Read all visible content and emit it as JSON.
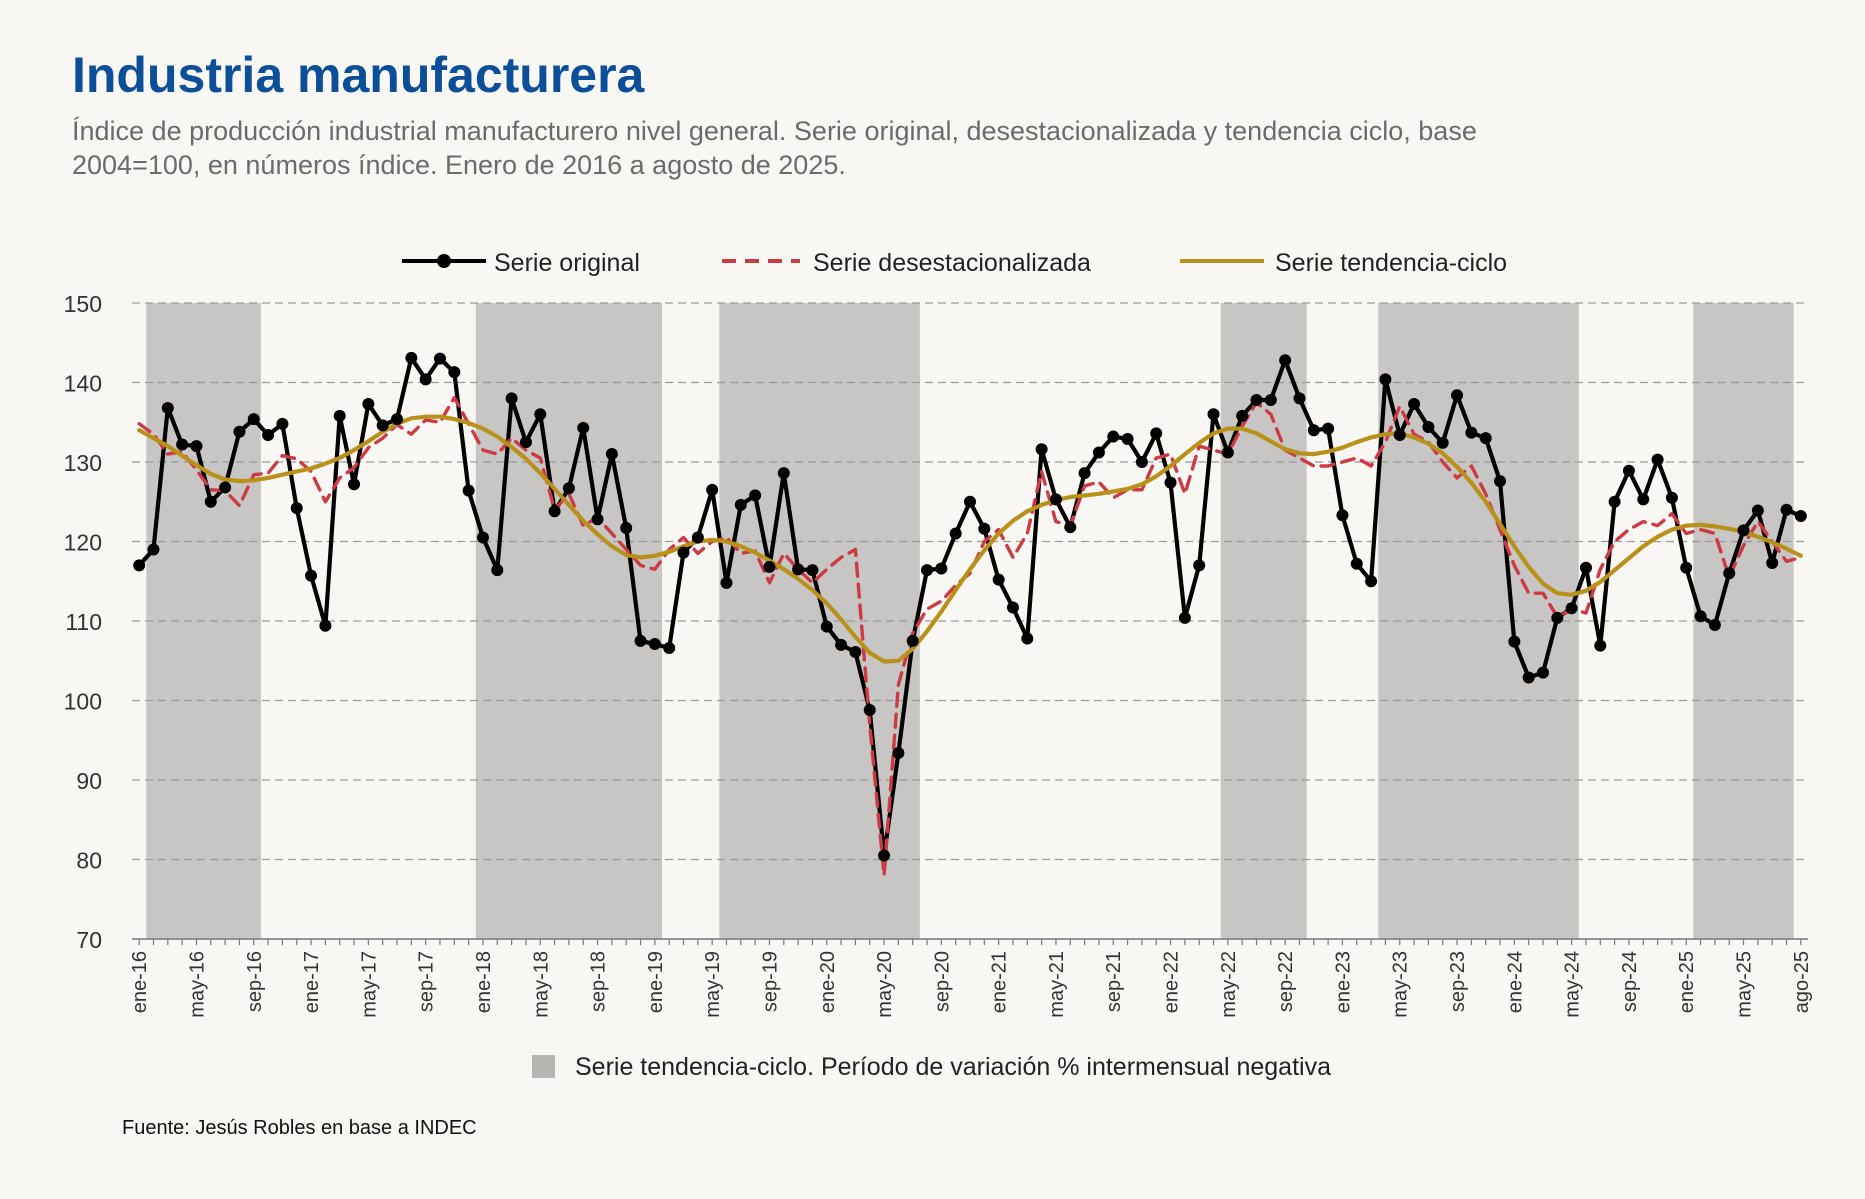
{
  "title": "Industria manufacturera",
  "subtitle": "Índice de producción industrial manufacturero nivel general. Serie original, desestacionalizada y tendencia ciclo, base 2004=100, en números índice. Enero de 2016 a agosto de 2025.",
  "source": "Fuente: Jesús Robles en base a INDEC",
  "colors": {
    "original": "#000000",
    "desestacionalizada": "#cc3a44",
    "tendencia": "#b8901a",
    "shade": "#c7c6c4",
    "title": "#0b4f98"
  },
  "chart_data": {
    "type": "line",
    "ylim": [
      70,
      150
    ],
    "yticks": [
      70,
      80,
      90,
      100,
      110,
      120,
      130,
      140,
      150
    ],
    "grid": true,
    "legend_placement": "top-center",
    "x_start": "2016-01",
    "x_end": "2025-08",
    "xtick_labels": [
      "ene-16",
      "may-16",
      "sep-16",
      "ene-17",
      "may-17",
      "sep-17",
      "ene-18",
      "may-18",
      "sep-18",
      "ene-19",
      "may-19",
      "sep-19",
      "ene-20",
      "may-20",
      "sep-20",
      "ene-21",
      "may-21",
      "sep-21",
      "ene-22",
      "may-22",
      "sep-22",
      "ene-23",
      "may-23",
      "sep-23",
      "ene-24",
      "may-24",
      "sep-24",
      "ene-25",
      "may-25",
      "ago-25"
    ],
    "series": [
      {
        "name": "Serie original",
        "style": "line-markers",
        "values": [
          117.0,
          119.0,
          136.8,
          132.2,
          132.0,
          125.0,
          126.8,
          133.8,
          135.4,
          133.4,
          134.8,
          124.2,
          115.7,
          109.4,
          135.8,
          127.2,
          137.3,
          134.6,
          135.4,
          143.1,
          140.4,
          143.0,
          141.3,
          126.4,
          120.5,
          116.4,
          138.0,
          132.5,
          136.0,
          123.8,
          126.7,
          134.3,
          122.8,
          131.0,
          121.7,
          107.5,
          107.1,
          106.6,
          118.6,
          120.5,
          126.5,
          114.8,
          124.6,
          125.8,
          116.8,
          128.6,
          116.5,
          116.4,
          109.3,
          107.0,
          106.1,
          98.8,
          80.5,
          93.4,
          107.5,
          116.4,
          116.6,
          121.0,
          125.0,
          121.6,
          115.2,
          111.7,
          107.8,
          131.6,
          125.3,
          121.8,
          128.6,
          131.2,
          133.2,
          132.9,
          130.0,
          133.6,
          127.4,
          110.4,
          117.0,
          136.0,
          131.2,
          135.8,
          137.8,
          137.8,
          142.8,
          138.0,
          134.0,
          134.2,
          123.3,
          117.2,
          115.0,
          140.4,
          133.4,
          137.3,
          134.4,
          132.4,
          138.4,
          133.7,
          133.0,
          127.6,
          107.4,
          102.9,
          103.5,
          110.4,
          111.6,
          116.7,
          106.9,
          125.0,
          128.9,
          125.3,
          130.3,
          125.5,
          116.7,
          110.6,
          109.5,
          116.0,
          121.4,
          123.9,
          117.3,
          124.0,
          123.2
        ]
      },
      {
        "name": "Serie desestacionalizada",
        "style": "dashed",
        "values": [
          134.8,
          133.5,
          131.0,
          131.3,
          129.0,
          126.5,
          126.4,
          124.5,
          128.4,
          128.6,
          130.8,
          130.4,
          128.8,
          125.0,
          128.0,
          129.3,
          131.8,
          133.0,
          134.7,
          133.5,
          135.3,
          135.0,
          138.1,
          134.8,
          131.5,
          131.0,
          133.0,
          131.5,
          130.5,
          124.0,
          126.0,
          122.0,
          123.0,
          121.0,
          119.0,
          117.0,
          116.5,
          119.0,
          120.5,
          118.5,
          120.0,
          120.5,
          118.5,
          118.8,
          114.8,
          118.5,
          116.5,
          114.8,
          116.5,
          118.0,
          119.0,
          97.0,
          78.0,
          102.0,
          108.5,
          111.5,
          112.5,
          114.5,
          116.0,
          120.0,
          121.5,
          118.0,
          121.0,
          128.8,
          122.5,
          122.0,
          127.0,
          127.5,
          125.5,
          126.5,
          126.5,
          130.5,
          131.0,
          126.0,
          132.0,
          131.5,
          131.0,
          134.5,
          137.5,
          136.0,
          131.5,
          130.5,
          129.5,
          129.5,
          130.0,
          130.5,
          129.5,
          132.5,
          137.0,
          133.5,
          132.5,
          130.0,
          128.0,
          129.5,
          126.0,
          121.5,
          117.0,
          113.5,
          113.5,
          110.5,
          111.5,
          111.0,
          116.5,
          120.0,
          121.5,
          122.5,
          122.0,
          123.5,
          121.0,
          121.5,
          121.0,
          115.5,
          119.5,
          122.5,
          120.0,
          117.5,
          118.0
        ]
      },
      {
        "name": "Serie tendencia-ciclo",
        "style": "solid",
        "values": [
          134.0,
          133.0,
          132.0,
          130.8,
          129.6,
          128.5,
          127.8,
          127.6,
          127.7,
          128.0,
          128.4,
          128.8,
          129.2,
          129.8,
          130.5,
          131.5,
          132.6,
          133.8,
          134.8,
          135.5,
          135.7,
          135.7,
          135.4,
          134.9,
          134.2,
          133.2,
          131.9,
          130.4,
          128.6,
          126.6,
          124.6,
          122.6,
          120.9,
          119.4,
          118.3,
          118.0,
          118.2,
          118.7,
          119.4,
          120.0,
          120.2,
          120.0,
          119.4,
          118.6,
          117.6,
          116.5,
          115.3,
          113.9,
          112.2,
          110.2,
          108.0,
          106.0,
          104.9,
          105.0,
          106.5,
          108.7,
          111.2,
          113.9,
          116.5,
          118.9,
          121.0,
          122.6,
          123.8,
          124.6,
          125.2,
          125.6,
          125.8,
          126.0,
          126.3,
          126.6,
          127.2,
          128.2,
          129.5,
          131.0,
          132.4,
          133.6,
          134.2,
          134.2,
          133.6,
          132.6,
          131.6,
          131.1,
          131.0,
          131.3,
          131.8,
          132.5,
          133.1,
          133.5,
          133.6,
          133.1,
          132.3,
          131.1,
          129.4,
          127.4,
          125.0,
          122.2,
          119.4,
          116.8,
          114.7,
          113.5,
          113.3,
          113.8,
          114.9,
          116.4,
          117.9,
          119.4,
          120.6,
          121.5,
          122.0,
          122.1,
          121.9,
          121.6,
          121.2,
          120.6,
          119.9,
          119.1,
          118.2
        ]
      }
    ],
    "shaded_periods": [
      [
        "2016-02",
        "2016-09"
      ],
      [
        "2018-01",
        "2019-01"
      ],
      [
        "2019-06",
        "2020-07"
      ],
      [
        "2022-05",
        "2022-10"
      ],
      [
        "2023-04",
        "2024-05"
      ],
      [
        "2025-02",
        "2025-08"
      ]
    ],
    "shade_legend": "Serie tendencia-ciclo. Período de variación % intermensual negativa"
  }
}
